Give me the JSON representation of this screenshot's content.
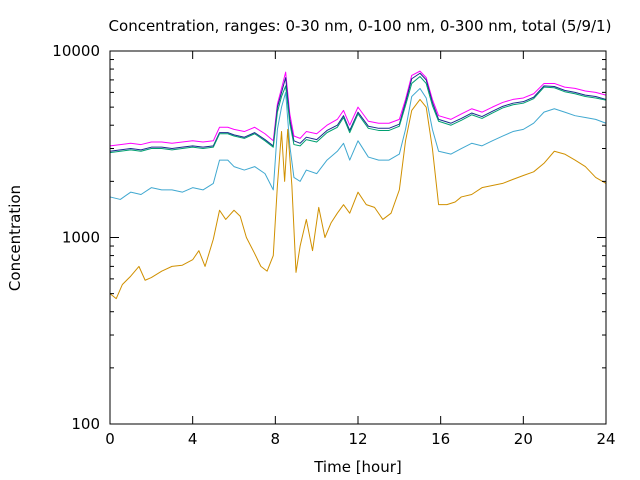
{
  "chart_data": {
    "type": "line",
    "title": "Concentration, ranges: 0-30 nm, 0-100 nm, 0-300 nm, total (5/9/1)",
    "xlabel": "Time [hour]",
    "ylabel": "Concentration",
    "xlim": [
      0,
      24
    ],
    "ylim": [
      100,
      10000
    ],
    "yscale": "log",
    "x_ticks": [
      0,
      4,
      8,
      12,
      16,
      20,
      24
    ],
    "x_tick_labels": [
      "0",
      "4",
      "8",
      "12",
      "16",
      "20",
      "24"
    ],
    "y_ticks": [
      100,
      1000,
      10000
    ],
    "y_tick_labels": [
      "100",
      "1000",
      "10000"
    ],
    "grid": false,
    "legend": "none",
    "series": [
      {
        "color": "#ff00ff",
        "x": [
          0,
          0.5,
          1,
          1.5,
          2,
          2.5,
          3,
          3.5,
          4,
          4.5,
          5,
          5.3,
          5.7,
          6,
          6.5,
          7,
          7.5,
          7.9,
          8.1,
          8.3,
          8.5,
          8.7,
          8.9,
          9.2,
          9.5,
          10,
          10.5,
          11,
          11.3,
          11.6,
          12,
          12.5,
          13,
          13.5,
          14,
          14.3,
          14.6,
          15,
          15.3,
          15.6,
          15.9,
          16.5,
          17,
          17.5,
          18,
          18.5,
          19,
          19.5,
          20,
          20.5,
          21,
          21.5,
          22,
          22.5,
          23,
          23.5,
          24
        ],
        "y": [
          3100,
          3150,
          3200,
          3150,
          3250,
          3250,
          3200,
          3250,
          3300,
          3250,
          3300,
          3900,
          3900,
          3800,
          3700,
          3900,
          3600,
          3300,
          5200,
          6300,
          7700,
          4600,
          3500,
          3400,
          3700,
          3600,
          4000,
          4300,
          4800,
          4000,
          5000,
          4200,
          4100,
          4100,
          4300,
          5500,
          7400,
          7800,
          7200,
          5500,
          4500,
          4300,
          4600,
          4900,
          4700,
          5000,
          5300,
          5500,
          5600,
          5900,
          6700,
          6700,
          6400,
          6300,
          6100,
          6000,
          5800
        ]
      },
      {
        "color": "#1b2a8f",
        "x": [
          0,
          0.5,
          1,
          1.5,
          2,
          2.5,
          3,
          3.5,
          4,
          4.5,
          5,
          5.3,
          5.7,
          6,
          6.5,
          7,
          7.5,
          7.9,
          8.1,
          8.3,
          8.5,
          8.7,
          8.9,
          9.2,
          9.5,
          10,
          10.5,
          11,
          11.3,
          11.6,
          12,
          12.5,
          13,
          13.5,
          14,
          14.3,
          14.6,
          15,
          15.3,
          15.6,
          15.9,
          16.5,
          17,
          17.5,
          18,
          18.5,
          19,
          19.5,
          20,
          20.5,
          21,
          21.5,
          22,
          22.5,
          23,
          23.5,
          24
        ],
        "y": [
          2900,
          2950,
          3000,
          2950,
          3050,
          3050,
          3000,
          3050,
          3100,
          3050,
          3100,
          3650,
          3650,
          3550,
          3450,
          3650,
          3350,
          3100,
          5000,
          6000,
          7200,
          4300,
          3300,
          3200,
          3450,
          3350,
          3750,
          4000,
          4500,
          3750,
          4700,
          3950,
          3850,
          3850,
          4050,
          5300,
          7100,
          7600,
          7000,
          5300,
          4300,
          4100,
          4350,
          4650,
          4450,
          4750,
          5050,
          5250,
          5350,
          5650,
          6500,
          6450,
          6150,
          6000,
          5800,
          5700,
          5500
        ]
      },
      {
        "color": "#00a070",
        "x": [
          0,
          0.5,
          1,
          1.5,
          2,
          2.5,
          3,
          3.5,
          4,
          4.5,
          5,
          5.3,
          5.7,
          6,
          6.5,
          7,
          7.5,
          7.9,
          8.1,
          8.3,
          8.5,
          8.7,
          8.9,
          9.2,
          9.5,
          10,
          10.5,
          11,
          11.3,
          11.6,
          12,
          12.5,
          13,
          13.5,
          14,
          14.3,
          14.6,
          15,
          15.3,
          15.6,
          15.9,
          16.5,
          17,
          17.5,
          18,
          18.5,
          19,
          19.5,
          20,
          20.5,
          21,
          21.5,
          22,
          22.5,
          23,
          23.5,
          24
        ],
        "y": [
          2850,
          2900,
          2950,
          2900,
          3000,
          3000,
          2950,
          3000,
          3050,
          3000,
          3050,
          3600,
          3600,
          3500,
          3400,
          3600,
          3300,
          3050,
          4700,
          5700,
          6500,
          4100,
          3150,
          3100,
          3350,
          3250,
          3650,
          3900,
          4400,
          3650,
          4600,
          3850,
          3750,
          3750,
          3950,
          5100,
          6700,
          7300,
          6700,
          5100,
          4200,
          4000,
          4250,
          4550,
          4350,
          4650,
          4950,
          5150,
          5250,
          5550,
          6400,
          6350,
          6050,
          5900,
          5700,
          5600,
          5450
        ]
      },
      {
        "color": "#40a8d0",
        "x": [
          0,
          0.5,
          1,
          1.5,
          2,
          2.5,
          3,
          3.5,
          4,
          4.5,
          5,
          5.3,
          5.7,
          6,
          6.5,
          7,
          7.5,
          7.9,
          8.1,
          8.3,
          8.5,
          8.7,
          8.9,
          9.2,
          9.5,
          10,
          10.5,
          11,
          11.3,
          11.6,
          12,
          12.5,
          13,
          13.5,
          14,
          14.3,
          14.6,
          15,
          15.3,
          15.6,
          15.9,
          16.5,
          17,
          17.5,
          18,
          18.5,
          19,
          19.5,
          20,
          20.5,
          21,
          21.5,
          22,
          22.5,
          23,
          23.5,
          24
        ],
        "y": [
          1650,
          1600,
          1750,
          1700,
          1850,
          1800,
          1800,
          1750,
          1850,
          1800,
          1950,
          2600,
          2600,
          2400,
          2300,
          2400,
          2200,
          1800,
          3800,
          5000,
          6000,
          3100,
          2100,
          2000,
          2300,
          2200,
          2600,
          2900,
          3200,
          2600,
          3300,
          2700,
          2600,
          2600,
          2800,
          3800,
          5700,
          6300,
          5600,
          3800,
          2900,
          2800,
          3000,
          3200,
          3100,
          3300,
          3500,
          3700,
          3800,
          4100,
          4700,
          4900,
          4700,
          4500,
          4400,
          4300,
          4100
        ]
      },
      {
        "color": "#d09000",
        "x": [
          0,
          0.3,
          0.6,
          1,
          1.4,
          1.7,
          2,
          2.5,
          3,
          3.5,
          4,
          4.3,
          4.6,
          5,
          5.3,
          5.6,
          6,
          6.3,
          6.6,
          7,
          7.3,
          7.6,
          7.9,
          8.1,
          8.3,
          8.45,
          8.6,
          8.8,
          9,
          9.2,
          9.5,
          9.8,
          10.1,
          10.4,
          10.7,
          11,
          11.3,
          11.6,
          12,
          12.4,
          12.8,
          13.2,
          13.6,
          14,
          14.3,
          14.6,
          15,
          15.3,
          15.6,
          15.9,
          16.3,
          16.7,
          17,
          17.5,
          18,
          18.5,
          19,
          19.5,
          20,
          20.5,
          21,
          21.5,
          22,
          22.5,
          23,
          23.5,
          24
        ],
        "y": [
          500,
          470,
          560,
          620,
          700,
          590,
          610,
          660,
          700,
          710,
          760,
          850,
          700,
          980,
          1400,
          1250,
          1400,
          1300,
          1000,
          820,
          700,
          660,
          800,
          1900,
          3700,
          2000,
          3800,
          1900,
          650,
          900,
          1250,
          850,
          1450,
          1000,
          1200,
          1350,
          1500,
          1350,
          1750,
          1500,
          1450,
          1250,
          1350,
          1800,
          3300,
          4800,
          5500,
          5000,
          3000,
          1500,
          1500,
          1550,
          1650,
          1700,
          1850,
          1900,
          1950,
          2050,
          2150,
          2250,
          2500,
          2900,
          2800,
          2600,
          2400,
          2100,
          1950
        ]
      }
    ]
  }
}
